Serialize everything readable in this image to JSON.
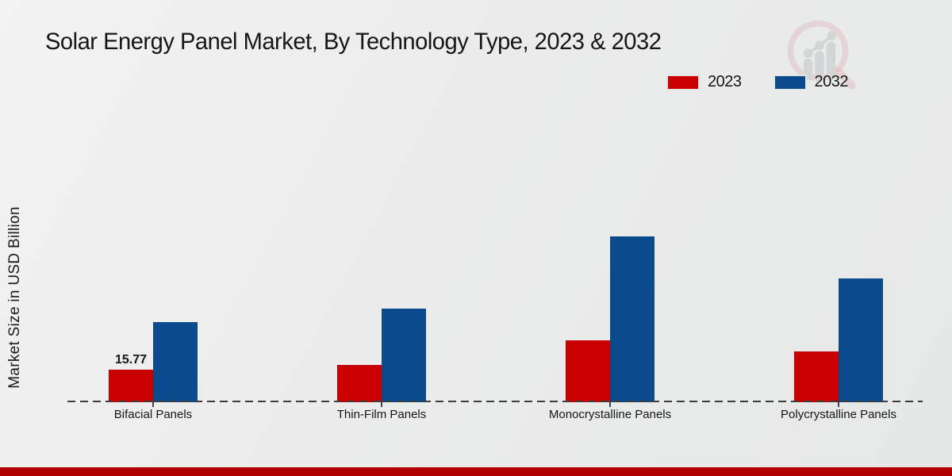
{
  "page": {
    "title": "Solar Energy Panel Market, By Technology Type, 2023 & 2032",
    "ylabel": "Market Size in USD Billion"
  },
  "legend": {
    "items": [
      {
        "label": "2023",
        "color": "#c80000"
      },
      {
        "label": "2032",
        "color": "#0b4a8c"
      }
    ]
  },
  "chart_data": {
    "type": "bar",
    "title": "Solar Energy Panel Market, By Technology Type, 2023 & 2032",
    "xlabel": "",
    "ylabel": "Market Size in USD Billion",
    "categories": [
      "Bifacial Panels",
      "Thin-Film Panels",
      "Monocrystalline Panels",
      "Polycrystalline Panels"
    ],
    "series": [
      {
        "name": "2023",
        "color": "#c80000",
        "values": [
          15.77,
          18.1,
          30.0,
          24.6
        ]
      },
      {
        "name": "2032",
        "color": "#0b4a8c",
        "values": [
          38.9,
          45.4,
          80.4,
          60.0
        ]
      }
    ],
    "value_labels": [
      {
        "series": "2023",
        "category_index": 0,
        "text": "15.77"
      }
    ],
    "ylim": [
      0,
      85
    ],
    "grid": false,
    "legend_position": "top-right",
    "baseline_style": "dashed",
    "y_axis_ticks_visible": false
  },
  "branding": {
    "logo_icon": "bar-chart-magnifier-logo",
    "footer_bar_color": "#b20000"
  }
}
